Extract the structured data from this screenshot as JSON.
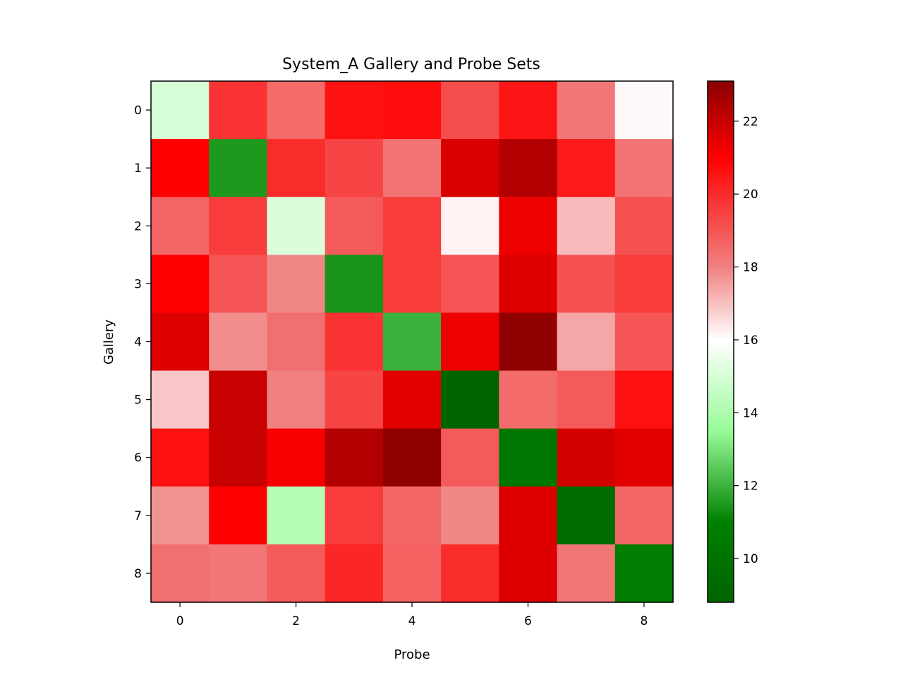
{
  "chart_data": {
    "type": "heatmap",
    "title": "System_A Gallery and Probe Sets",
    "xlabel": "Probe",
    "ylabel": "Gallery",
    "x_ticks": [
      "0",
      "2",
      "4",
      "6",
      "8"
    ],
    "y_ticks": [
      "0",
      "1",
      "2",
      "3",
      "4",
      "5",
      "6",
      "7",
      "8"
    ],
    "colorbar_ticks": [
      "10",
      "12",
      "14",
      "16",
      "18",
      "20",
      "22"
    ],
    "colorbar_range": [
      8.8,
      23.1
    ],
    "colorscale": [
      {
        "value": 8.8,
        "color": "#006400"
      },
      {
        "value": 11.0,
        "color": "#008000"
      },
      {
        "value": 13.5,
        "color": "#98FB98"
      },
      {
        "value": 16.0,
        "color": "#FFFFFF"
      },
      {
        "value": 18.0,
        "color": "#F08080"
      },
      {
        "value": 21.0,
        "color": "#FF0000"
      },
      {
        "value": 23.1,
        "color": "#8B0000"
      }
    ],
    "values": [
      [
        15.0,
        19.8,
        18.5,
        20.6,
        20.7,
        19.2,
        20.5,
        18.2,
        16.1
      ],
      [
        21.0,
        11.5,
        20.0,
        19.4,
        18.3,
        21.7,
        22.4,
        20.4,
        18.3
      ],
      [
        18.6,
        19.6,
        15.1,
        18.9,
        19.6,
        16.2,
        21.3,
        17.1,
        19.1
      ],
      [
        21.0,
        19.0,
        17.9,
        11.4,
        19.6,
        19.0,
        21.6,
        19.1,
        19.6
      ],
      [
        21.6,
        17.8,
        18.4,
        19.8,
        12.0,
        21.3,
        23.0,
        17.4,
        19.0
      ],
      [
        16.9,
        22.0,
        18.0,
        19.4,
        21.5,
        8.9,
        18.5,
        18.9,
        20.6
      ],
      [
        20.6,
        22.0,
        21.1,
        22.4,
        23.0,
        18.9,
        10.3,
        21.8,
        21.5
      ],
      [
        17.7,
        21.0,
        14.2,
        19.6,
        18.6,
        17.9,
        21.6,
        9.5,
        18.6
      ],
      [
        18.4,
        18.2,
        18.9,
        20.1,
        18.7,
        20.0,
        21.6,
        18.2,
        10.7
      ]
    ]
  }
}
